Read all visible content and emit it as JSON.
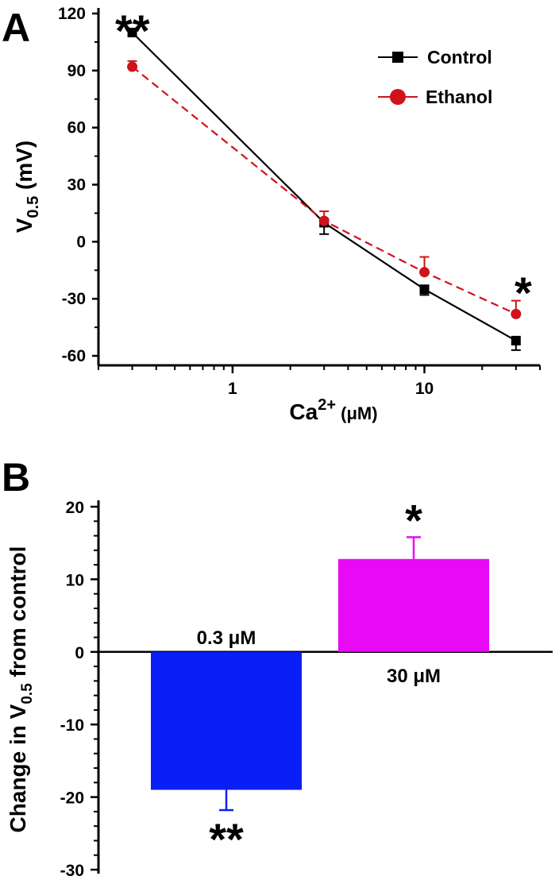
{
  "panel_a": {
    "letter": "A"
  },
  "panel_b": {
    "letter": "B"
  },
  "chart_data": [
    {
      "type": "line",
      "xscale": "log",
      "xlim": [
        0.2,
        40
      ],
      "ylim": [
        -65,
        120
      ],
      "xticks": [
        1,
        10
      ],
      "xtick_labels": [
        "1",
        "10"
      ],
      "yticks": [
        120,
        90,
        60,
        30,
        0,
        -30,
        -60
      ],
      "ytick_labels": [
        "120",
        "90",
        "60",
        "30",
        "0",
        "-30",
        "-60"
      ],
      "xlabel": {
        "main": "Ca",
        "sup": "2+",
        "unit": " (μM)"
      },
      "ylabel": {
        "main": "V",
        "sub": "0.5",
        "unit": " (mV)"
      },
      "legend_position": "top-right",
      "series": [
        {
          "name": "Control",
          "color": "#000000",
          "marker": "square",
          "line_style": "solid",
          "x": [
            0.3,
            3,
            10,
            30
          ],
          "y": [
            110,
            10,
            -25,
            -52
          ],
          "err": [
            0,
            6,
            3,
            5
          ]
        },
        {
          "name": "Ethanol",
          "color": "#d0121b",
          "marker": "circle",
          "line_style": "dashed",
          "x": [
            0.3,
            3,
            10,
            30
          ],
          "y": [
            92,
            11,
            -16,
            -38
          ],
          "err": [
            3,
            5,
            8,
            7
          ]
        }
      ],
      "annotations": [
        {
          "text": "**",
          "x": 0.3
        },
        {
          "text": "*",
          "x": 30
        }
      ]
    },
    {
      "type": "bar",
      "ylim": [
        -30,
        20
      ],
      "yticks": [
        20,
        10,
        0,
        -10,
        -20,
        -30
      ],
      "ytick_labels": [
        "20",
        "10",
        "0",
        "-10",
        "-20",
        "-30"
      ],
      "ylabel": {
        "main": "Change in V",
        "sub": "0.5",
        "rest": " from control"
      },
      "categories": [
        "0.3 μM",
        "30 μM"
      ],
      "values": [
        -19,
        12.8
      ],
      "errors": [
        2.8,
        3
      ],
      "colors": [
        "#0a1ff5",
        "#e80af5"
      ],
      "annotations": [
        "**",
        "*"
      ]
    }
  ]
}
